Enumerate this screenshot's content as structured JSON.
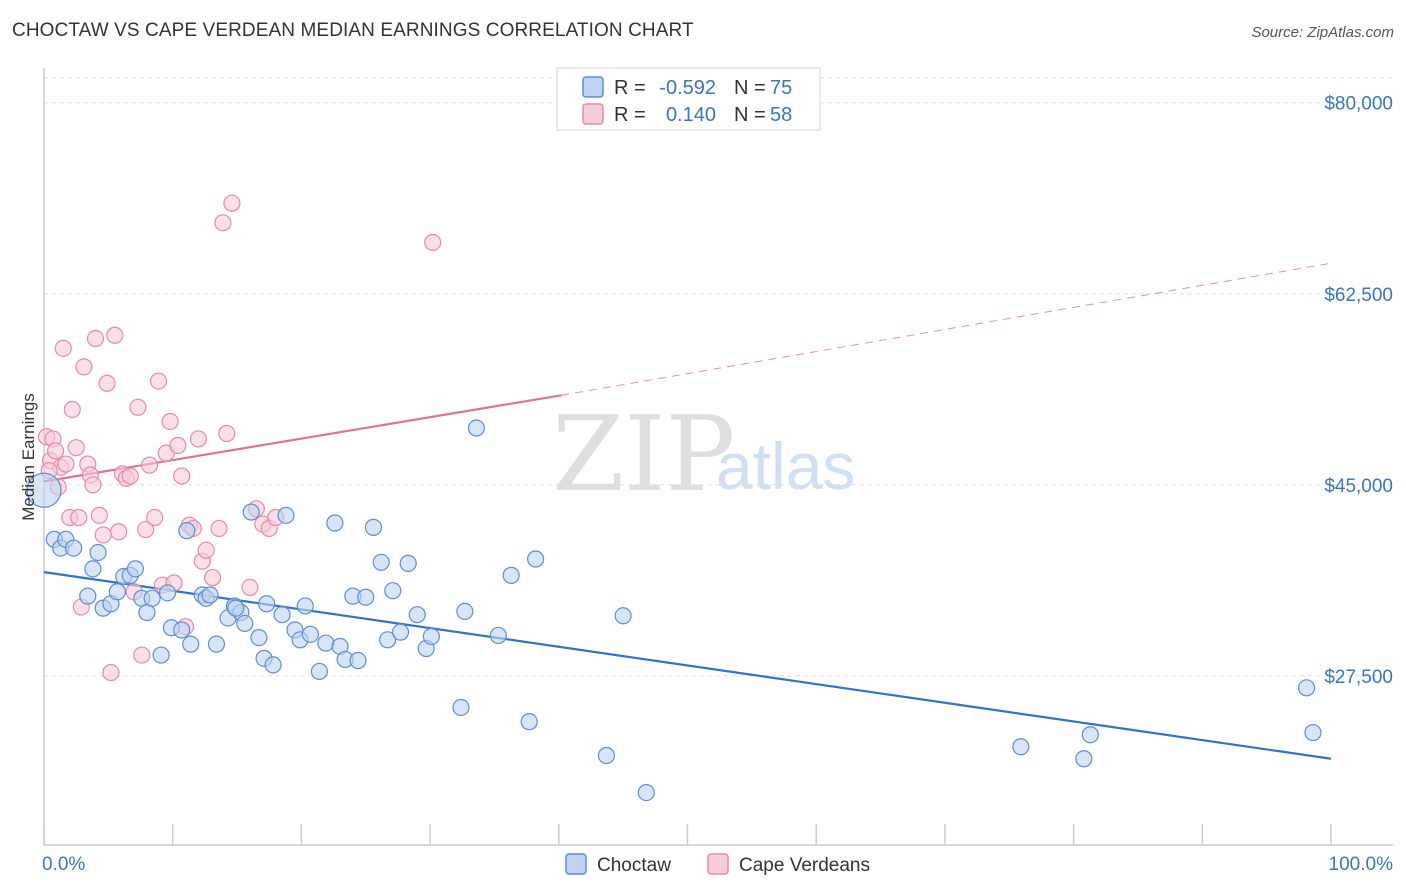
{
  "title": "CHOCTAW VS CAPE VERDEAN MEDIAN EARNINGS CORRELATION CHART",
  "source": "Source: ZipAtlas.com",
  "watermark": {
    "zip": "ZIP",
    "atlas": "atlas"
  },
  "colors": {
    "choctaw": "#5b8fd6",
    "choctaw_fill": "#bdd3f1",
    "choctaw_line": "#2f72cf",
    "cape": "#e889a6",
    "cape_fill": "#f8ccd9",
    "cape_line": "#e2709a",
    "axis_text": "#3b74c4",
    "grid": "#dddddd"
  },
  "legend": {
    "r_label": "R =",
    "n_label": "N =",
    "rows": [
      {
        "r": "-0.592",
        "n": "75"
      },
      {
        "r": "0.140",
        "n": "58"
      }
    ]
  },
  "chart_data": {
    "type": "scatter",
    "xlabel": "",
    "ylabel": "Median Earnings",
    "xlim": [
      0,
      100
    ],
    "ylim": [
      12000,
      83000
    ],
    "x_tick_labels": [
      "0.0%",
      "100.0%"
    ],
    "y_ticks": [
      {
        "value": 80000,
        "label": "$80,000"
      },
      {
        "value": 62500,
        "label": "$62,500"
      },
      {
        "value": 45000,
        "label": "$45,000"
      },
      {
        "value": 27500,
        "label": "$27,500"
      }
    ],
    "series": [
      {
        "name": "Choctaw",
        "r": -0.592,
        "n": 75,
        "trend": {
          "x0": 0,
          "y0": 37000,
          "x1": 100,
          "y1": 19900
        },
        "points": [
          [
            0,
            44500
          ],
          [
            0.8,
            40000
          ],
          [
            1.3,
            39200
          ],
          [
            1.7,
            40000
          ],
          [
            2.3,
            39200
          ],
          [
            3.4,
            34800
          ],
          [
            3.8,
            37300
          ],
          [
            4.2,
            38800
          ],
          [
            4.6,
            33700
          ],
          [
            5.2,
            34100
          ],
          [
            5.7,
            35200
          ],
          [
            6.2,
            36600
          ],
          [
            6.7,
            36700
          ],
          [
            7.1,
            37300
          ],
          [
            7.6,
            34600
          ],
          [
            8.0,
            33300
          ],
          [
            8.4,
            34600
          ],
          [
            9.1,
            29400
          ],
          [
            9.6,
            35100
          ],
          [
            9.9,
            31900
          ],
          [
            10.7,
            31700
          ],
          [
            11.1,
            40800
          ],
          [
            11.4,
            30400
          ],
          [
            12.3,
            34900
          ],
          [
            12.6,
            34600
          ],
          [
            12.9,
            34900
          ],
          [
            13.4,
            30400
          ],
          [
            14.3,
            32800
          ],
          [
            14.8,
            33900
          ],
          [
            15.3,
            33300
          ],
          [
            15.6,
            32300
          ],
          [
            16.1,
            42500
          ],
          [
            16.7,
            31000
          ],
          [
            17.1,
            29100
          ],
          [
            17.3,
            34100
          ],
          [
            17.8,
            28500
          ],
          [
            18.5,
            33100
          ],
          [
            18.8,
            42200
          ],
          [
            19.5,
            31700
          ],
          [
            19.9,
            30800
          ],
          [
            20.3,
            33900
          ],
          [
            20.7,
            31300
          ],
          [
            21.4,
            27900
          ],
          [
            21.9,
            30500
          ],
          [
            22.6,
            41500
          ],
          [
            23.0,
            30200
          ],
          [
            23.4,
            29000
          ],
          [
            24.0,
            34800
          ],
          [
            24.4,
            28900
          ],
          [
            25.0,
            34700
          ],
          [
            25.6,
            41100
          ],
          [
            26.2,
            37900
          ],
          [
            26.7,
            30800
          ],
          [
            27.1,
            35300
          ],
          [
            27.7,
            31500
          ],
          [
            28.3,
            37800
          ],
          [
            29.0,
            33100
          ],
          [
            29.7,
            30000
          ],
          [
            30.1,
            31100
          ],
          [
            32.4,
            24600
          ],
          [
            32.7,
            33400
          ],
          [
            33.6,
            50200
          ],
          [
            35.3,
            31200
          ],
          [
            36.3,
            36700
          ],
          [
            37.7,
            23300
          ],
          [
            38.2,
            38200
          ],
          [
            43.7,
            20200
          ],
          [
            45.0,
            33000
          ],
          [
            46.8,
            16800
          ],
          [
            75.9,
            21000
          ],
          [
            80.8,
            19900
          ],
          [
            81.3,
            22100
          ],
          [
            98.1,
            26400
          ],
          [
            98.6,
            22300
          ],
          [
            14.9,
            33700
          ]
        ]
      },
      {
        "name": "Cape Verdeans",
        "r": 0.14,
        "n": 58,
        "trend": {
          "x0": 0,
          "y0": 45300,
          "x1": 40.2,
          "y1": 53200,
          "dash_x1": 100,
          "dash_y1": 65300
        },
        "points": [
          [
            0.2,
            49400
          ],
          [
            0.5,
            47200
          ],
          [
            0.7,
            49200
          ],
          [
            0.9,
            48100
          ],
          [
            1.1,
            44800
          ],
          [
            1.3,
            46600
          ],
          [
            1.5,
            57500
          ],
          [
            1.7,
            46900
          ],
          [
            2.0,
            42000
          ],
          [
            2.2,
            51900
          ],
          [
            2.5,
            48400
          ],
          [
            2.7,
            42000
          ],
          [
            2.9,
            33800
          ],
          [
            3.1,
            55800
          ],
          [
            3.4,
            46900
          ],
          [
            3.6,
            45900
          ],
          [
            3.8,
            45000
          ],
          [
            4.0,
            58400
          ],
          [
            4.3,
            42200
          ],
          [
            4.6,
            40400
          ],
          [
            4.9,
            54300
          ],
          [
            5.2,
            27800
          ],
          [
            5.5,
            58700
          ],
          [
            5.8,
            40700
          ],
          [
            6.1,
            46000
          ],
          [
            6.4,
            45600
          ],
          [
            6.7,
            45800
          ],
          [
            7.0,
            35200
          ],
          [
            7.3,
            52100
          ],
          [
            7.6,
            29400
          ],
          [
            7.9,
            40900
          ],
          [
            8.2,
            46800
          ],
          [
            8.6,
            42000
          ],
          [
            8.9,
            54500
          ],
          [
            9.2,
            35800
          ],
          [
            9.5,
            47900
          ],
          [
            9.8,
            50800
          ],
          [
            10.1,
            36000
          ],
          [
            10.4,
            48600
          ],
          [
            10.7,
            45800
          ],
          [
            11.0,
            32000
          ],
          [
            11.3,
            41300
          ],
          [
            11.6,
            41000
          ],
          [
            12.0,
            49200
          ],
          [
            12.3,
            38000
          ],
          [
            12.6,
            39000
          ],
          [
            13.1,
            36500
          ],
          [
            13.6,
            41000
          ],
          [
            13.9,
            69000
          ],
          [
            14.2,
            49700
          ],
          [
            14.6,
            70800
          ],
          [
            16.0,
            35600
          ],
          [
            16.5,
            42800
          ],
          [
            17.0,
            41400
          ],
          [
            17.5,
            41000
          ],
          [
            18.0,
            42000
          ],
          [
            30.2,
            67200
          ],
          [
            0.4,
            46300
          ]
        ]
      }
    ],
    "legend_position": "top-center",
    "grid": true
  },
  "bottom_legend": [
    {
      "label": "Choctaw"
    },
    {
      "label": "Cape Verdeans"
    }
  ]
}
